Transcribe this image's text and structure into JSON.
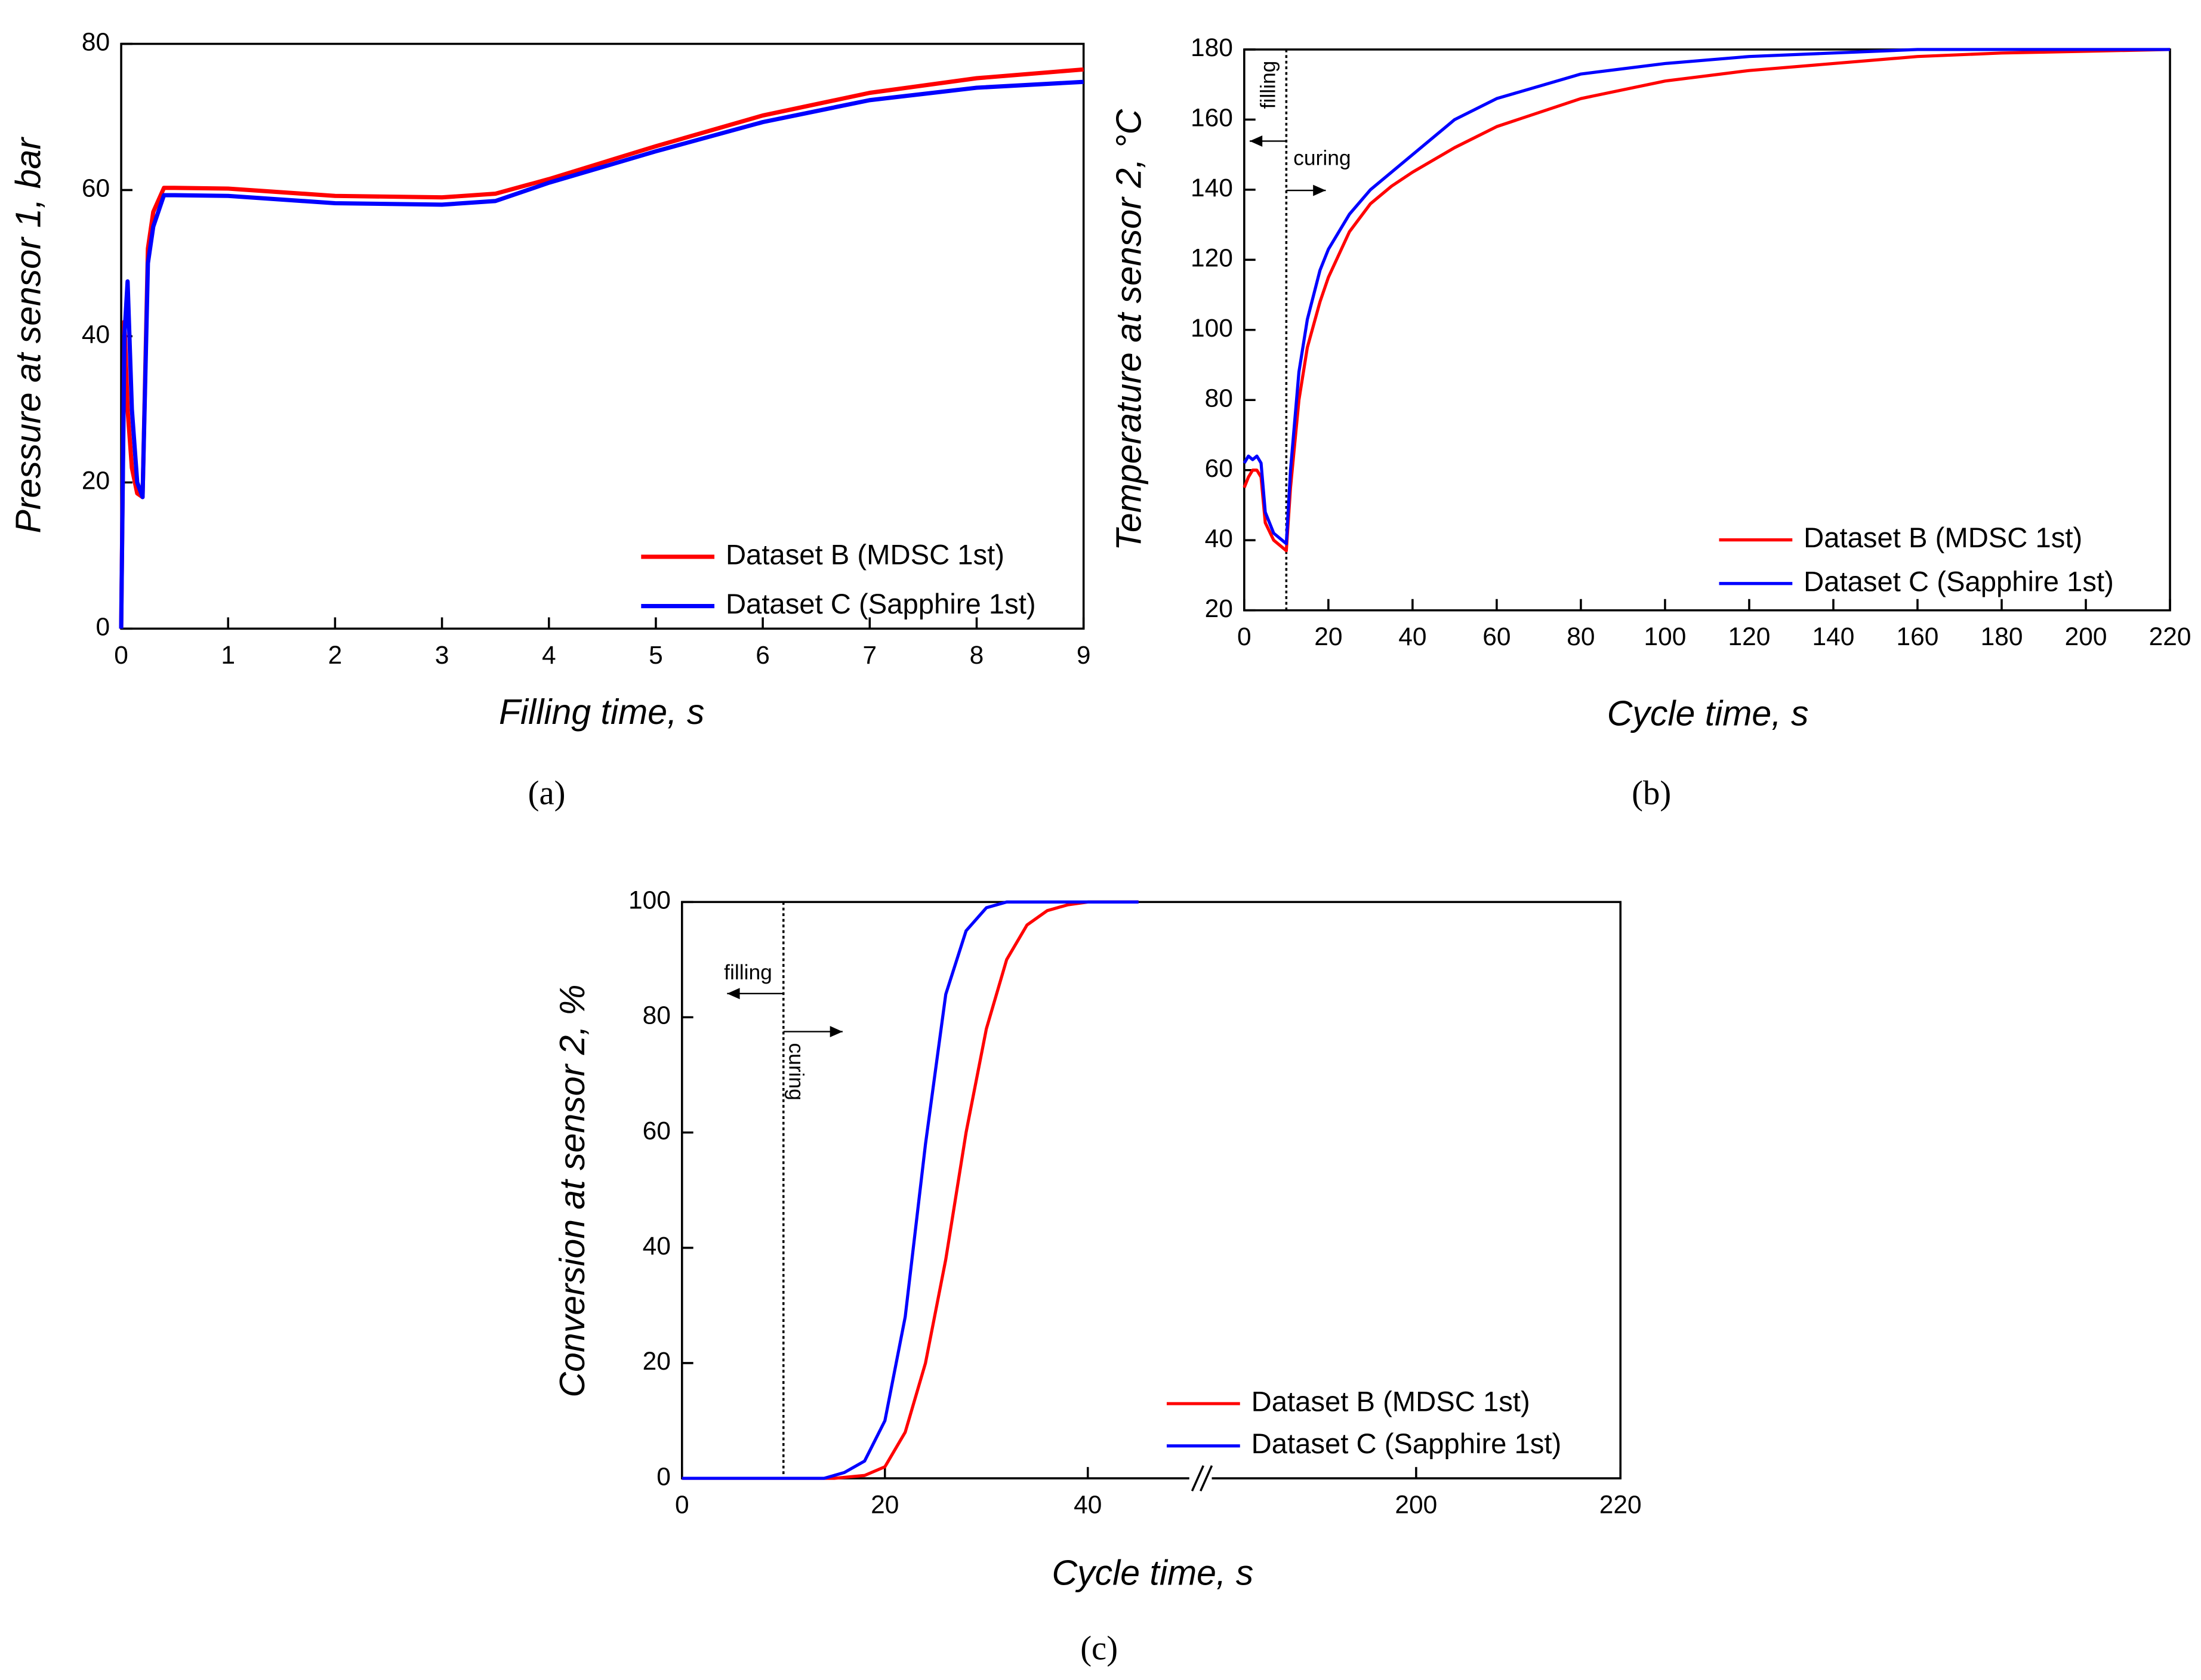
{
  "chart_data": [
    {
      "type": "line",
      "panel_label": "(a)",
      "xlabel": "Filling time, s",
      "ylabel": "Pressure at sensor 1, bar",
      "xlim": [
        0,
        9
      ],
      "ylim": [
        0,
        80
      ],
      "xticks": [
        0,
        1,
        2,
        3,
        4,
        5,
        6,
        7,
        8,
        9
      ],
      "yticks": [
        0,
        20,
        40,
        60,
        80
      ],
      "legend": "lower right",
      "series": [
        {
          "name": "Dataset B (MDSC 1st)",
          "color": "#ff0000",
          "x": [
            0,
            0.03,
            0.06,
            0.1,
            0.15,
            0.2,
            0.25,
            0.3,
            0.4,
            0.5,
            1,
            2,
            3,
            3.5,
            4,
            5,
            6,
            7,
            8,
            9
          ],
          "values": [
            0,
            42,
            30,
            22,
            18.5,
            18,
            52,
            57,
            60.3,
            60.3,
            60.2,
            59.2,
            59,
            59.5,
            61.5,
            66,
            70.2,
            73.3,
            75.3,
            76.5
          ]
        },
        {
          "name": "Dataset C (Sapphire 1st)",
          "color": "#0000ff",
          "x": [
            0,
            0.03,
            0.06,
            0.1,
            0.15,
            0.2,
            0.25,
            0.3,
            0.4,
            0.5,
            1,
            2,
            3,
            3.5,
            4,
            5,
            6,
            7,
            8,
            9
          ],
          "values": [
            0,
            40,
            47.5,
            30,
            20,
            18,
            50,
            55,
            59.3,
            59.3,
            59.2,
            58.2,
            58,
            58.5,
            61,
            65.3,
            69.3,
            72.3,
            74,
            74.8
          ]
        }
      ]
    },
    {
      "type": "line",
      "panel_label": "(b)",
      "xlabel": "Cycle time, s",
      "ylabel": "Temperature at sensor 2, °C",
      "xlim": [
        0,
        220
      ],
      "ylim": [
        20,
        180
      ],
      "xticks": [
        0,
        20,
        40,
        60,
        80,
        100,
        120,
        140,
        160,
        180,
        200,
        220
      ],
      "yticks": [
        20,
        40,
        60,
        80,
        100,
        120,
        140,
        160,
        180
      ],
      "legend": "lower right",
      "vline_x": 10,
      "annotations": [
        "filling",
        "curing"
      ],
      "series": [
        {
          "name": "Dataset B (MDSC 1st)",
          "color": "#ff0000",
          "x": [
            0,
            1,
            2,
            3,
            4,
            5,
            7,
            9,
            10,
            11,
            13,
            15,
            18,
            20,
            25,
            30,
            35,
            40,
            50,
            60,
            80,
            100,
            120,
            140,
            160,
            180,
            200,
            220
          ],
          "values": [
            55,
            58,
            60,
            60,
            58,
            45,
            40,
            38,
            37,
            55,
            80,
            95,
            108,
            115,
            128,
            136,
            141,
            145,
            152,
            158,
            166,
            171,
            174,
            176,
            178,
            179,
            179.5,
            180
          ]
        },
        {
          "name": "Dataset C (Sapphire 1st)",
          "color": "#0000ff",
          "x": [
            0,
            1,
            2,
            3,
            4,
            5,
            7,
            9,
            10,
            11,
            13,
            15,
            18,
            20,
            25,
            30,
            35,
            40,
            50,
            60,
            80,
            100,
            120,
            140,
            160,
            180,
            200,
            220
          ],
          "values": [
            62,
            64,
            63,
            64,
            62,
            48,
            42,
            40,
            39,
            60,
            88,
            103,
            117,
            123,
            133,
            140,
            145,
            150,
            160,
            166,
            173,
            176,
            178,
            179,
            180,
            180,
            180,
            180
          ]
        }
      ]
    },
    {
      "type": "line",
      "panel_label": "(c)",
      "xlabel": "Cycle time, s",
      "ylabel": "Conversion at sensor 2, %",
      "xlim": [
        0,
        220
      ],
      "xbreak": [
        50,
        180
      ],
      "ylim": [
        0,
        100
      ],
      "xticks": [
        0,
        20,
        40,
        200,
        220
      ],
      "yticks": [
        0,
        20,
        40,
        60,
        80,
        100
      ],
      "legend": "lower right",
      "vline_x": 10,
      "annotations": [
        "filling",
        "curing"
      ],
      "series": [
        {
          "name": "Dataset B (MDSC 1st)",
          "color": "#ff0000",
          "x": [
            0,
            10,
            15,
            18,
            20,
            22,
            24,
            26,
            28,
            30,
            32,
            34,
            36,
            38,
            40,
            45
          ],
          "values": [
            0,
            0,
            0,
            0.5,
            2,
            8,
            20,
            38,
            60,
            78,
            90,
            96,
            98.5,
            99.5,
            100,
            100
          ]
        },
        {
          "name": "Dataset C (Sapphire 1st)",
          "color": "#0000ff",
          "x": [
            0,
            10,
            14,
            16,
            18,
            20,
            22,
            24,
            26,
            28,
            30,
            32,
            36,
            40,
            45
          ],
          "values": [
            0,
            0,
            0,
            1,
            3,
            10,
            28,
            58,
            84,
            95,
            99,
            100,
            100,
            100,
            100
          ]
        }
      ]
    }
  ]
}
